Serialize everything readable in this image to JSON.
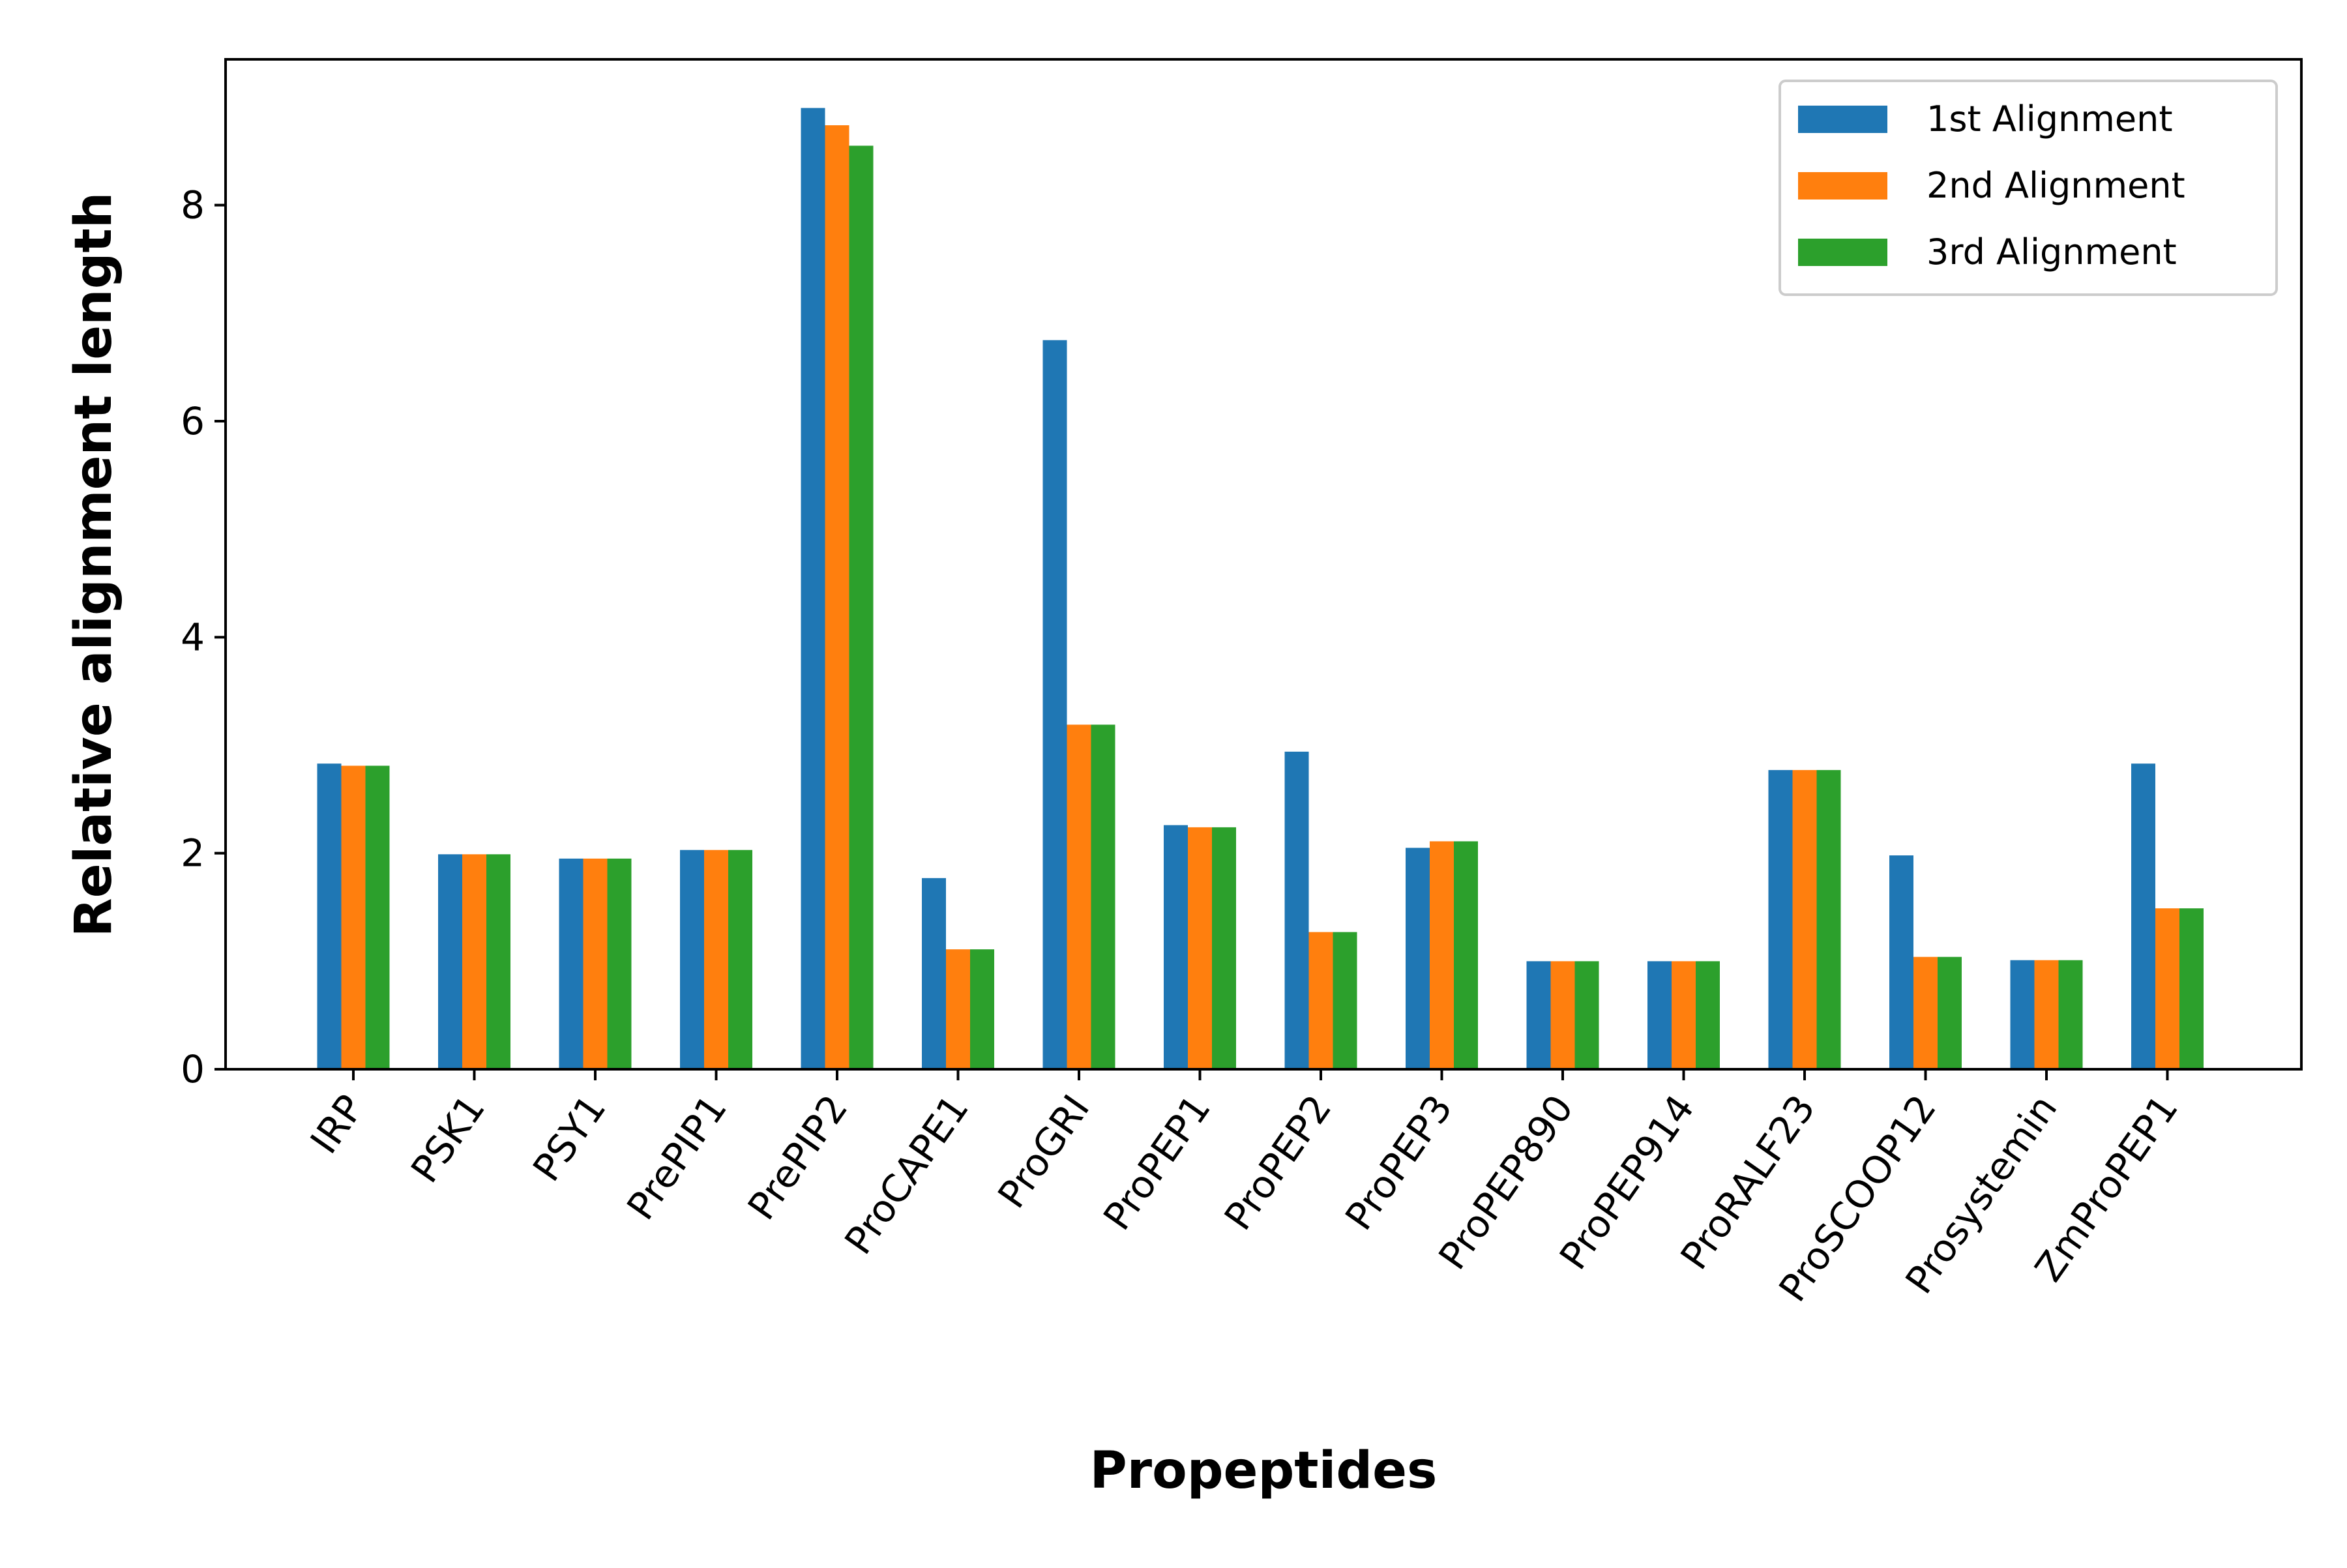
{
  "chart_data": {
    "type": "bar",
    "xlabel": "Propeptides",
    "ylabel": "Relative alignment length",
    "ylim": [
      0,
      9.35
    ],
    "yticks": [
      0,
      2,
      4,
      6,
      8
    ],
    "grid": false,
    "legend_position": "top-right",
    "categories": [
      "IRP",
      "PSK1",
      "PSY1",
      "PrePIP1",
      "PrePIP2",
      "ProCAPE1",
      "ProGRI",
      "ProPEP1",
      "ProPEP2",
      "ProPEP3",
      "ProPEP890",
      "ProPEP914",
      "ProRALF23",
      "ProSCOOP12",
      "Prosystemin",
      "ZmProPEP1"
    ],
    "series": [
      {
        "name": "1st Alignment",
        "color": "#1f77b4",
        "values": [
          2.83,
          1.99,
          1.95,
          2.03,
          8.9,
          1.77,
          6.75,
          2.26,
          2.94,
          2.05,
          1.0,
          1.0,
          2.77,
          1.98,
          1.01,
          2.83
        ]
      },
      {
        "name": "2nd Alignment",
        "color": "#ff7f0e",
        "values": [
          2.81,
          1.99,
          1.95,
          2.03,
          8.74,
          1.11,
          3.19,
          2.24,
          1.27,
          2.11,
          1.0,
          1.0,
          2.77,
          1.04,
          1.01,
          1.49
        ]
      },
      {
        "name": "3rd Alignment",
        "color": "#2ca02c",
        "values": [
          2.81,
          1.99,
          1.95,
          2.03,
          8.55,
          1.11,
          3.19,
          2.24,
          1.27,
          2.11,
          1.0,
          1.0,
          2.77,
          1.04,
          1.01,
          1.49
        ]
      }
    ]
  }
}
